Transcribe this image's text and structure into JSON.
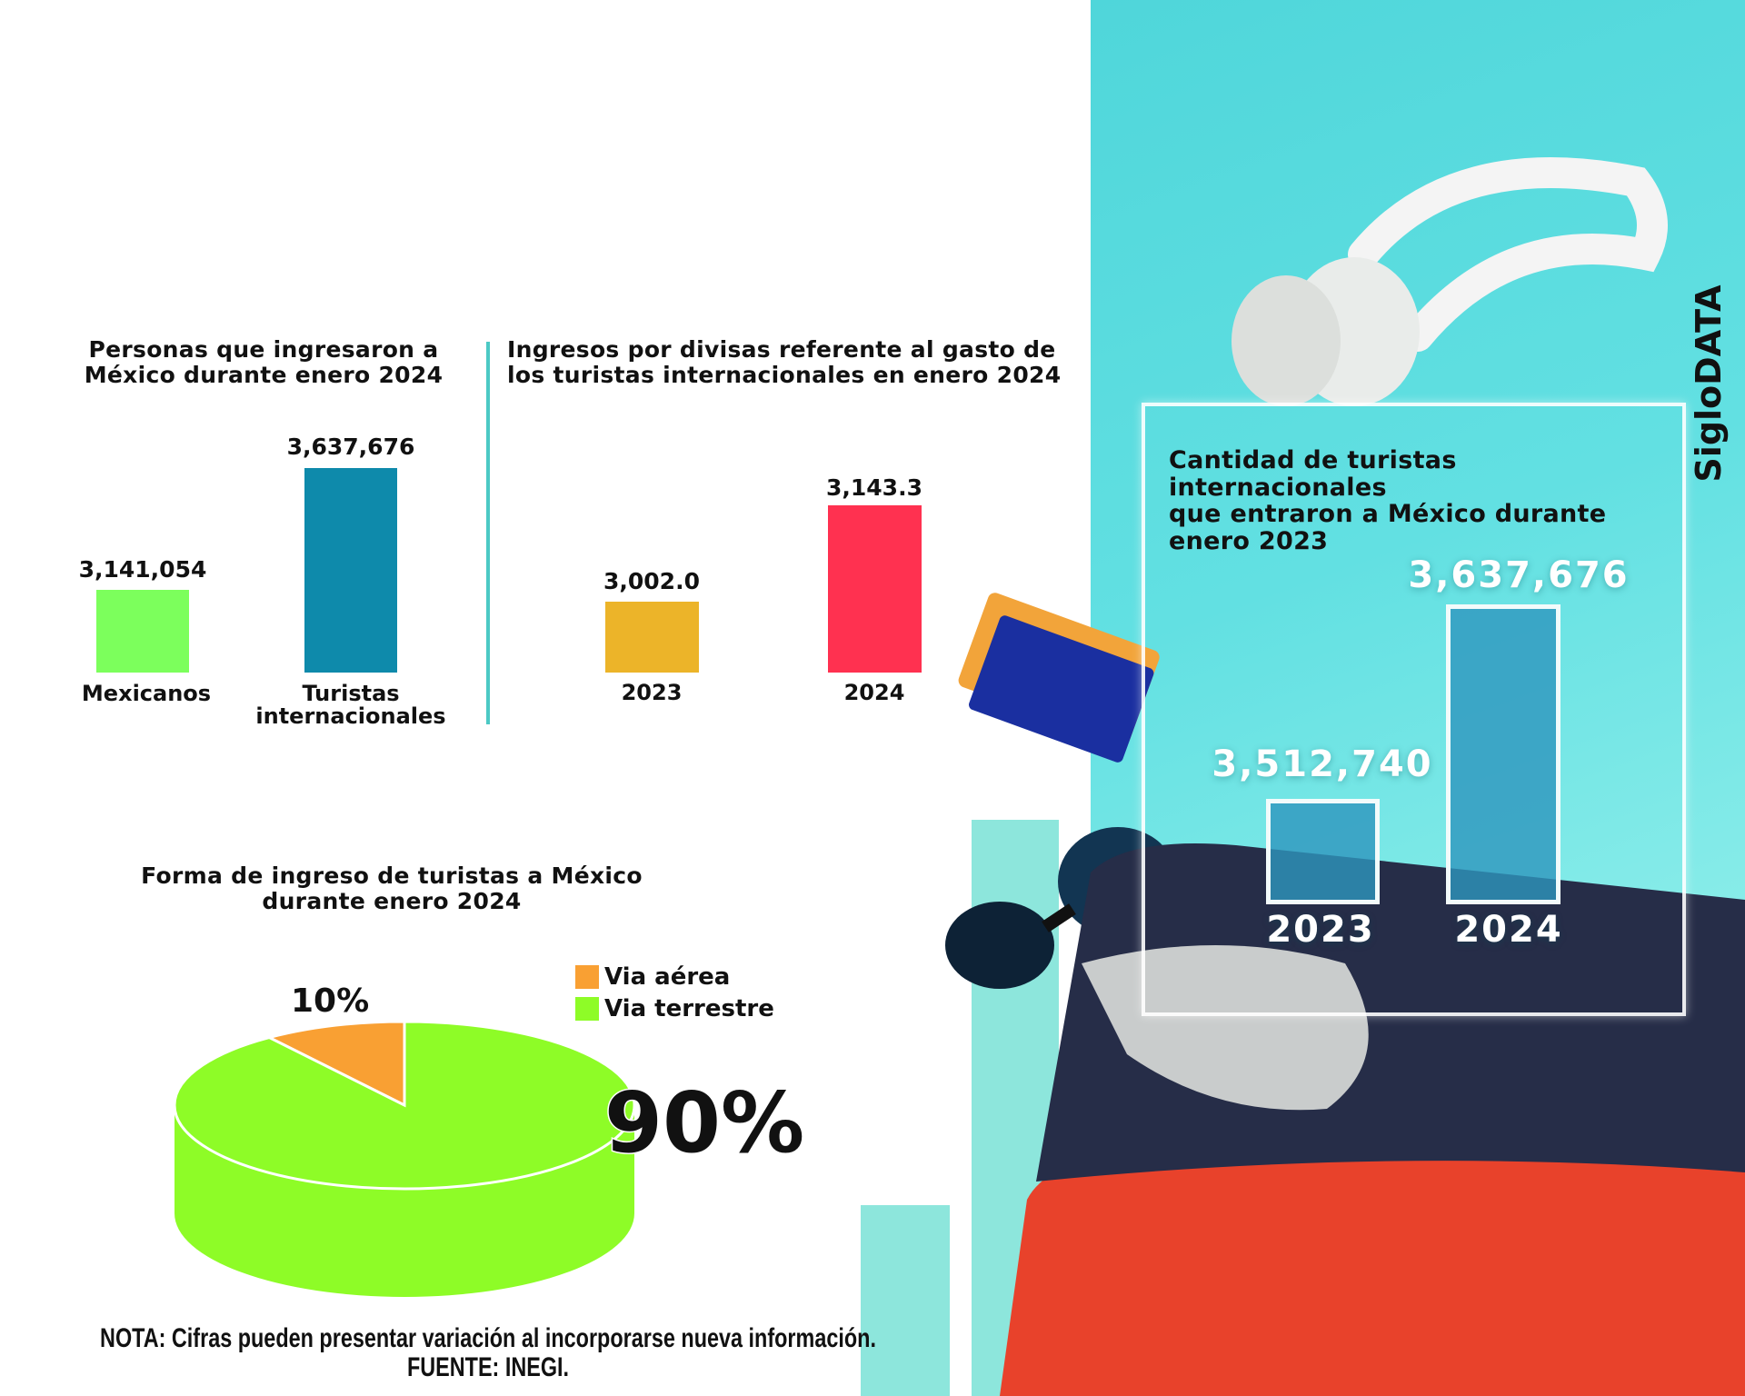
{
  "colors": {
    "panel": "#5fdde0",
    "green": "#7cff5c",
    "teal": "#0e8aab",
    "gold": "#ecb429",
    "red": "#ff3150",
    "pie_air": "#f9a033",
    "pie_land": "#8efc27"
  },
  "brand": "SigloDATA",
  "chart_data": [
    {
      "type": "bar",
      "title": "Personas que ingresaron a México durante enero 2024",
      "categories": [
        "Mexicanos",
        "Turistas internacionales"
      ],
      "values": [
        3141054,
        3637676
      ],
      "value_labels": [
        "3,141,054",
        "3,637,676"
      ],
      "colors": [
        "#7cff5c",
        "#0e8aab"
      ]
    },
    {
      "type": "bar",
      "title": "Ingresos por divisas referente al gasto de los turistas internacionales en enero 2024",
      "categories": [
        "2023",
        "2024"
      ],
      "values": [
        3002.0,
        3143.3
      ],
      "value_labels": [
        "3,002.0",
        "3,143.3"
      ],
      "colors": [
        "#ecb429",
        "#ff3150"
      ]
    },
    {
      "type": "bar",
      "title": "Cantidad de turistas internacionales que entraron a México durante enero 2023",
      "categories": [
        "2023",
        "2024"
      ],
      "values": [
        3512740,
        3637676
      ],
      "value_labels": [
        "3,512,740",
        "3,637,676"
      ]
    },
    {
      "type": "pie",
      "title": "Forma de ingreso de turistas a México durante enero 2024",
      "labels": [
        "Via aérea",
        "Via terrestre"
      ],
      "values": [
        10,
        90
      ],
      "value_labels": [
        "10%",
        "90%"
      ],
      "colors": [
        "#f9a033",
        "#8efc27"
      ],
      "legend": "top-right"
    }
  ],
  "titles": {
    "c1": [
      "Personas que ingresaron a",
      "México durante enero 2024"
    ],
    "c2": [
      "Ingresos por divisas referente al gasto de",
      "los turistas internacionales en enero 2024"
    ],
    "c3": [
      "Cantidad de turistas internacionales",
      "que entraron a México durante",
      "enero 2023"
    ],
    "c4": [
      "Forma de ingreso de turistas a México",
      "durante enero 2024"
    ]
  },
  "cats1": [
    "Mexicanos",
    "Turistas",
    "internacionales"
  ],
  "footer": {
    "nota": "NOTA: Cifras pueden presentar variación al incorporarse nueva información.",
    "fuente": "FUENTE: INEGI."
  }
}
